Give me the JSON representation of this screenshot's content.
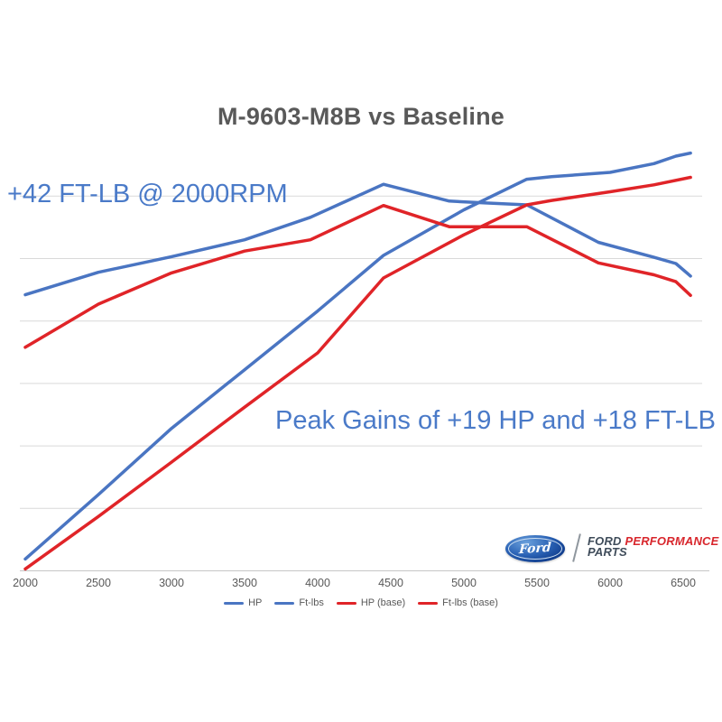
{
  "title": "M-9603-M8B vs Baseline",
  "annotations": {
    "torque_gain": "+42 FT-LB @ 2000RPM",
    "peak_gains": "Peak Gains of +19 HP and +18 FT-LB"
  },
  "logo": {
    "oval_script": "Ford",
    "brand_line1_dark": "FORD",
    "brand_line1_red": "PERFORMANCE",
    "brand_line2": "PARTS"
  },
  "colors": {
    "curve_blue": "#4a75c2",
    "curve_red": "#e02428",
    "annotation_blue": "#4a7ac8",
    "title_gray": "#595959",
    "gridline_gray": "#d9d9d9",
    "axis_gray": "#c6c6c6",
    "ford_oval_blue": "#123f8f",
    "logo_dark": "#3f4c5a",
    "logo_red": "#d8262c"
  },
  "chart_data": {
    "type": "line",
    "title": "M-9603-M8B vs Baseline",
    "xlabel": "",
    "ylabel": "",
    "x_ticks": [
      "2000",
      "2500",
      "3000",
      "3500",
      "4000",
      "4500",
      "5000",
      "5500",
      "6000",
      "6500"
    ],
    "x_range": [
      2000,
      6600
    ],
    "y_axis": {
      "tick_labels_visible": false,
      "gridlines_count": 7,
      "inferred_value_per_gridline": 50,
      "note": "y axis unlabeled; values below are in gridline units above the bottom axis (1 unit ≈ 50 HP / 50 ft-lb inferred from annotations)"
    },
    "legend_position": "bottom",
    "grid": "horizontal-only",
    "series": [
      {
        "name": "HP",
        "color": "#4a75c2",
        "points": [
          [
            2000,
            0.19
          ],
          [
            2500,
            1.22
          ],
          [
            3000,
            2.28
          ],
          [
            3500,
            3.22
          ],
          [
            4000,
            4.16
          ],
          [
            4450,
            5.05
          ],
          [
            5000,
            5.78
          ],
          [
            5430,
            6.27
          ],
          [
            5600,
            6.31
          ],
          [
            6000,
            6.38
          ],
          [
            6300,
            6.52
          ],
          [
            6450,
            6.64
          ],
          [
            6550,
            6.69
          ]
        ]
      },
      {
        "name": "Ft-lbs",
        "color": "#4a75c2",
        "points": [
          [
            2000,
            4.42
          ],
          [
            2500,
            4.78
          ],
          [
            3000,
            5.03
          ],
          [
            3500,
            5.3
          ],
          [
            3950,
            5.66
          ],
          [
            4450,
            6.19
          ],
          [
            4900,
            5.92
          ],
          [
            5150,
            5.89
          ],
          [
            5430,
            5.86
          ],
          [
            5920,
            5.26
          ],
          [
            6300,
            5.02
          ],
          [
            6450,
            4.92
          ],
          [
            6550,
            4.72
          ]
        ]
      },
      {
        "name": "HP (base)",
        "color": "#e02428",
        "points": [
          [
            2000,
            0.03
          ],
          [
            2500,
            0.87
          ],
          [
            3000,
            1.74
          ],
          [
            3500,
            2.62
          ],
          [
            4000,
            3.49
          ],
          [
            4450,
            4.69
          ],
          [
            5000,
            5.38
          ],
          [
            5430,
            5.86
          ],
          [
            5600,
            5.93
          ],
          [
            6000,
            6.07
          ],
          [
            6300,
            6.18
          ],
          [
            6550,
            6.3
          ]
        ]
      },
      {
        "name": "Ft-lbs (base)",
        "color": "#e02428",
        "points": [
          [
            2000,
            3.58
          ],
          [
            2500,
            4.27
          ],
          [
            3000,
            4.77
          ],
          [
            3500,
            5.12
          ],
          [
            3950,
            5.3
          ],
          [
            4450,
            5.85
          ],
          [
            4900,
            5.51
          ],
          [
            5430,
            5.51
          ],
          [
            5920,
            4.93
          ],
          [
            6300,
            4.74
          ],
          [
            6450,
            4.63
          ],
          [
            6550,
            4.41
          ]
        ]
      }
    ]
  }
}
